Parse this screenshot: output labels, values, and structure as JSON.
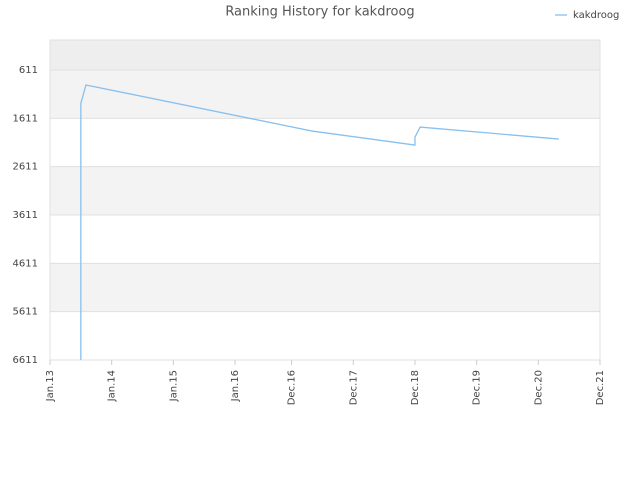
{
  "chart_data": {
    "type": "line",
    "title": "Ranking History for kakdroog",
    "x": [
      "2013-07",
      "2013-07",
      "2013-08",
      "2017-04",
      "2018-12",
      "2018-12",
      "2019-01",
      "2021-04"
    ],
    "series": [
      {
        "name": "kakdroog",
        "color": "#88c0ee",
        "values": [
          6611,
          1300,
          921,
          1874,
          2164,
          2000,
          1791,
          2040
        ]
      }
    ],
    "xlim": [
      "2013-01",
      "2021-12"
    ],
    "xticks": [
      {
        "value": "2013-01",
        "label": "Jan.13"
      },
      {
        "value": "2014-01",
        "label": "Jan.14"
      },
      {
        "value": "2015-01",
        "label": "Jan.15"
      },
      {
        "value": "2016-01",
        "label": "Jan.16"
      },
      {
        "value": "2016-12",
        "label": "Dec.16"
      },
      {
        "value": "2017-12",
        "label": "Dec.17"
      },
      {
        "value": "2018-12",
        "label": "Dec.18"
      },
      {
        "value": "2019-12",
        "label": "Dec.19"
      },
      {
        "value": "2020-12",
        "label": "Dec.20"
      },
      {
        "value": "2021-12",
        "label": "Dec.21"
      }
    ],
    "ylim": [
      6611,
      -10
    ],
    "yticks": [
      611,
      1611,
      2611,
      3611,
      4611,
      5611,
      6611
    ],
    "grid": true,
    "legend": "top-right"
  }
}
